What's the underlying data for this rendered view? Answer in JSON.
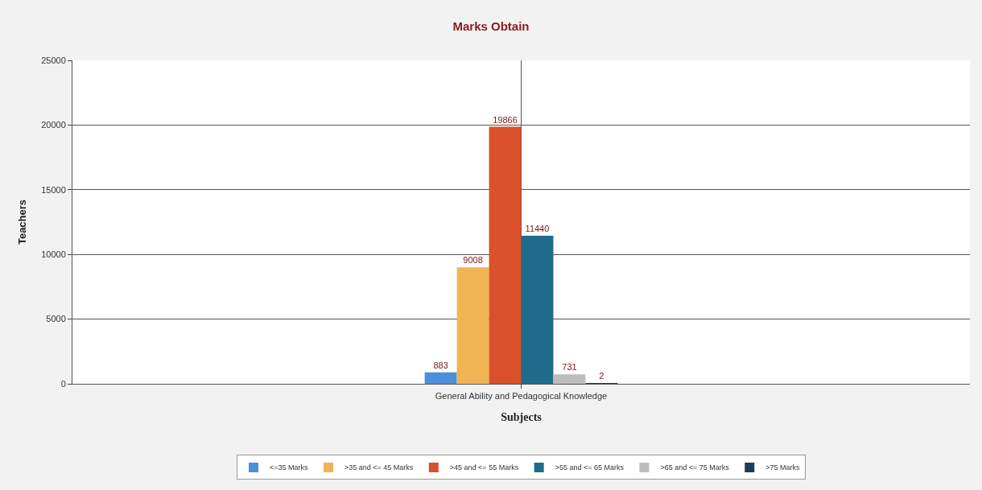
{
  "chart_data": {
    "type": "bar",
    "title": "Marks Obtain",
    "xlabel": "Subjects",
    "ylabel": "Teachers",
    "categories": [
      "General Ability and Pedagogical Knowledge"
    ],
    "series": [
      {
        "name": "<=35 Marks",
        "color": "#4a8fdc",
        "values": [
          883
        ]
      },
      {
        "name": ">35 and <= 45 Marks",
        "color": "#f0b452",
        "values": [
          9008
        ]
      },
      {
        "name": ">45 and <= 55 Marks",
        "color": "#d9502a",
        "values": [
          19866
        ]
      },
      {
        "name": ">55 and <= 65 Marks",
        "color": "#1f6b8c",
        "values": [
          11440
        ]
      },
      {
        "name": ">65 and <= 75 Marks",
        "color": "#bdbdbd",
        "values": [
          731
        ]
      },
      {
        "name": ">75 Marks",
        "color": "#1e3a5c",
        "values": [
          2
        ]
      }
    ],
    "ylim": [
      0,
      25000
    ],
    "yticks": [
      0,
      5000,
      10000,
      15000,
      20000,
      25000
    ],
    "grid": true,
    "legend": "bottom",
    "data_labels": true
  }
}
